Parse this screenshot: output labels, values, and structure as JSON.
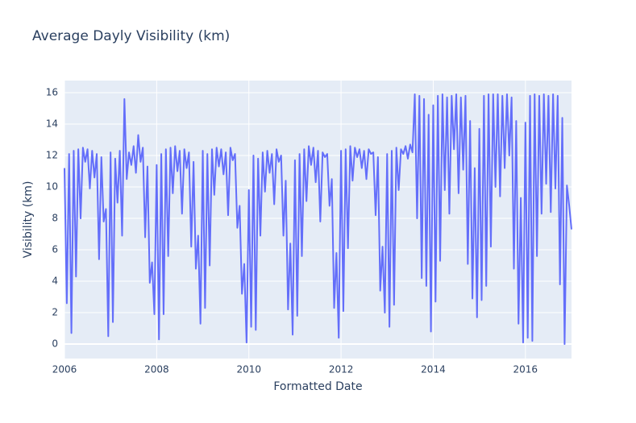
{
  "chart_data": {
    "type": "line",
    "title": "Average Dayly Visibility (km)",
    "x_label": "Formatted Date",
    "y_label": "Visibility (km)",
    "color": "#636efa",
    "grid": true,
    "xlim": [
      2006,
      2017
    ],
    "xticks": [
      2006,
      2008,
      2010,
      2012,
      2014,
      2016
    ],
    "ylim": [
      -0.92,
      16.77
    ],
    "yticks": [
      0,
      2,
      4,
      6,
      8,
      10,
      12,
      14,
      16
    ],
    "x": [
      2006.0,
      2006.05,
      2006.1,
      2006.15,
      2006.2,
      2006.25,
      2006.3,
      2006.35,
      2006.4,
      2006.45,
      2006.5,
      2006.55,
      2006.6,
      2006.65,
      2006.7,
      2006.75,
      2006.8,
      2006.85,
      2006.9,
      2006.95,
      2007.0,
      2007.05,
      2007.1,
      2007.15,
      2007.2,
      2007.25,
      2007.3,
      2007.35,
      2007.4,
      2007.45,
      2007.5,
      2007.55,
      2007.6,
      2007.65,
      2007.7,
      2007.75,
      2007.8,
      2007.85,
      2007.9,
      2007.95,
      2008.0,
      2008.05,
      2008.1,
      2008.15,
      2008.2,
      2008.25,
      2008.3,
      2008.35,
      2008.4,
      2008.45,
      2008.5,
      2008.55,
      2008.6,
      2008.65,
      2008.7,
      2008.75,
      2008.8,
      2008.85,
      2008.9,
      2008.95,
      2009.0,
      2009.05,
      2009.1,
      2009.15,
      2009.2,
      2009.25,
      2009.3,
      2009.35,
      2009.4,
      2009.45,
      2009.5,
      2009.55,
      2009.6,
      2009.65,
      2009.7,
      2009.75,
      2009.8,
      2009.85,
      2009.9,
      2009.95,
      2010.0,
      2010.05,
      2010.1,
      2010.15,
      2010.2,
      2010.25,
      2010.3,
      2010.35,
      2010.4,
      2010.45,
      2010.5,
      2010.55,
      2010.6,
      2010.65,
      2010.7,
      2010.75,
      2010.8,
      2010.85,
      2010.9,
      2010.95,
      2011.0,
      2011.05,
      2011.1,
      2011.15,
      2011.2,
      2011.25,
      2011.3,
      2011.35,
      2011.4,
      2011.45,
      2011.5,
      2011.55,
      2011.6,
      2011.65,
      2011.7,
      2011.75,
      2011.8,
      2011.85,
      2011.9,
      2011.95,
      2012.0,
      2012.05,
      2012.1,
      2012.15,
      2012.2,
      2012.25,
      2012.3,
      2012.35,
      2012.4,
      2012.45,
      2012.5,
      2012.55,
      2012.6,
      2012.65,
      2012.7,
      2012.75,
      2012.8,
      2012.85,
      2012.9,
      2012.95,
      2013.0,
      2013.05,
      2013.1,
      2013.15,
      2013.2,
      2013.25,
      2013.3,
      2013.35,
      2013.4,
      2013.45,
      2013.5,
      2013.55,
      2013.6,
      2013.65,
      2013.7,
      2013.75,
      2013.8,
      2013.85,
      2013.9,
      2013.95,
      2014.0,
      2014.05,
      2014.1,
      2014.15,
      2014.2,
      2014.25,
      2014.3,
      2014.35,
      2014.4,
      2014.45,
      2014.5,
      2014.55,
      2014.6,
      2014.65,
      2014.7,
      2014.75,
      2014.8,
      2014.85,
      2014.9,
      2014.95,
      2015.0,
      2015.05,
      2015.1,
      2015.15,
      2015.2,
      2015.25,
      2015.3,
      2015.35,
      2015.4,
      2015.45,
      2015.5,
      2015.55,
      2015.6,
      2015.65,
      2015.7,
      2015.75,
      2015.8,
      2015.85,
      2015.9,
      2015.95,
      2016.0,
      2016.05,
      2016.1,
      2016.15,
      2016.2,
      2016.25,
      2016.3,
      2016.35,
      2016.4,
      2016.45,
      2016.5,
      2016.55,
      2016.6,
      2016.65,
      2016.7,
      2016.75,
      2016.8,
      2016.85,
      2016.9,
      2016.95,
      2017.0
    ],
    "values": [
      11.2,
      2.6,
      12.1,
      0.7,
      12.3,
      4.3,
      12.4,
      8.0,
      12.5,
      11.6,
      12.4,
      9.9,
      12.3,
      10.6,
      12.1,
      5.4,
      11.9,
      7.8,
      8.6,
      0.5,
      12.2,
      1.4,
      11.8,
      9.0,
      12.3,
      6.9,
      15.6,
      10.5,
      12.2,
      11.4,
      12.6,
      10.9,
      13.3,
      11.6,
      12.5,
      6.8,
      11.3,
      3.9,
      5.2,
      1.9,
      11.4,
      0.3,
      12.1,
      1.9,
      12.4,
      5.6,
      12.5,
      9.6,
      12.6,
      11.0,
      12.3,
      8.3,
      12.4,
      11.2,
      12.2,
      6.2,
      11.6,
      4.8,
      6.9,
      1.3,
      12.3,
      2.3,
      12.1,
      5.0,
      12.4,
      9.5,
      12.5,
      11.3,
      12.4,
      10.8,
      12.2,
      8.2,
      12.5,
      11.7,
      12.1,
      7.4,
      8.8,
      3.2,
      5.1,
      0.1,
      9.8,
      1.1,
      12.0,
      0.9,
      11.8,
      6.9,
      12.2,
      9.7,
      12.3,
      10.9,
      12.1,
      8.9,
      12.4,
      11.6,
      12.0,
      6.9,
      10.4,
      2.2,
      6.4,
      0.6,
      11.7,
      1.8,
      12.1,
      5.6,
      12.4,
      9.1,
      12.6,
      11.4,
      12.5,
      10.3,
      12.3,
      7.8,
      12.2,
      11.9,
      12.1,
      8.8,
      10.5,
      2.3,
      5.8,
      0.4,
      12.3,
      2.1,
      12.4,
      6.1,
      12.6,
      10.4,
      12.5,
      11.9,
      12.4,
      11.2,
      12.3,
      10.5,
      12.4,
      12.1,
      12.2,
      8.2,
      11.9,
      3.4,
      6.2,
      2.0,
      12.1,
      1.1,
      12.3,
      2.5,
      12.5,
      9.8,
      12.4,
      12.1,
      12.6,
      11.8,
      12.7,
      12.2,
      15.9,
      8.0,
      15.8,
      4.2,
      15.6,
      3.7,
      14.6,
      0.8,
      15.2,
      2.7,
      15.8,
      5.3,
      15.9,
      9.8,
      15.7,
      8.3,
      15.8,
      12.4,
      15.9,
      9.6,
      15.7,
      11.1,
      15.8,
      5.1,
      14.2,
      2.9,
      11.2,
      1.7,
      13.7,
      2.8,
      15.8,
      3.7,
      15.9,
      6.2,
      15.9,
      10.0,
      15.9,
      9.4,
      15.8,
      11.2,
      15.9,
      12.0,
      15.7,
      4.8,
      14.2,
      1.3,
      9.3,
      0.1,
      14.1,
      0.4,
      15.8,
      0.2,
      15.9,
      5.6,
      15.8,
      8.3,
      15.9,
      10.2,
      15.8,
      8.4,
      15.9,
      9.9,
      15.8,
      3.8,
      14.4,
      0.0,
      10.1,
      8.8,
      7.3
    ]
  }
}
